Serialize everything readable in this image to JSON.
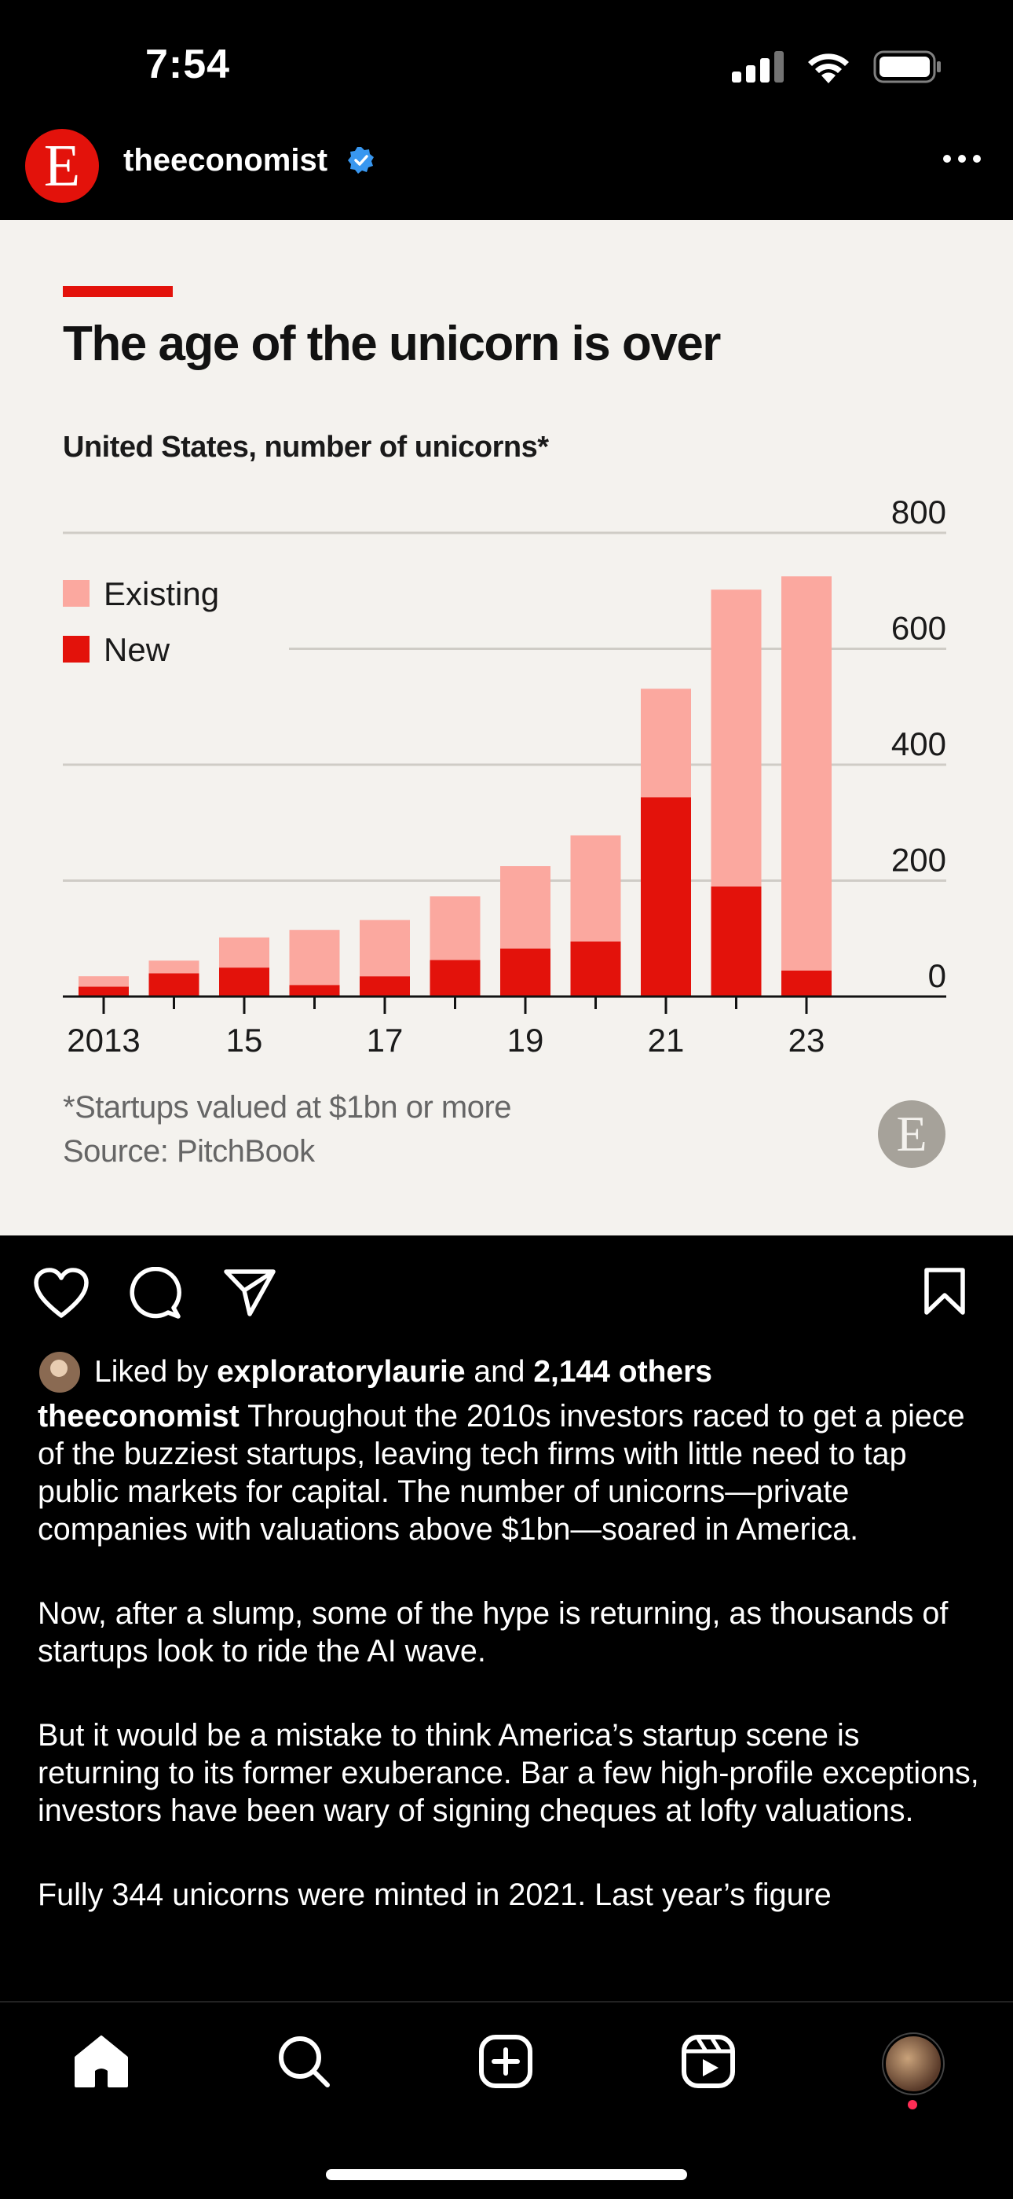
{
  "status_bar": {
    "time": "7:54"
  },
  "post": {
    "username": "theeconomist",
    "avatar_letter": "E",
    "brand_color": "#e3120b"
  },
  "chart_data": {
    "type": "bar",
    "stacked": true,
    "title": "The age of the unicorn is over",
    "subtitle": "United States, number of unicorns*",
    "categories": [
      "2013",
      "2014",
      "2015",
      "2016",
      "2017",
      "2018",
      "2019",
      "2020",
      "2021",
      "2022",
      "2023"
    ],
    "x_tick_labels": [
      "2013",
      "15",
      "17",
      "19",
      "21",
      "23"
    ],
    "series": [
      {
        "name": "New",
        "color": "#e3120b",
        "values": [
          17,
          40,
          50,
          20,
          35,
          63,
          83,
          95,
          344,
          190,
          45
        ]
      },
      {
        "name": "Existing",
        "color": "#fba89f",
        "values": [
          18,
          22,
          52,
          95,
          97,
          110,
          142,
          183,
          187,
          512,
          680
        ]
      }
    ],
    "y_ticks": [
      "800",
      "600",
      "400",
      "200",
      "0"
    ],
    "ylim": [
      0,
      800
    ],
    "y_axis_side": "right",
    "legend_position": "top-left",
    "footnote": "*Startups valued at $1bn or more",
    "source": "Source: PitchBook"
  },
  "likes": {
    "prefix": "Liked by",
    "user": "exploratorylaurie",
    "joiner": "and",
    "others": "2,144 others"
  },
  "caption": {
    "author": "theeconomist",
    "p1": "Throughout the 2010s investors raced to get a piece of the buzziest startups, leaving tech firms with little need to tap public markets for capital. The number of unicorns—private companies with valuations above $1bn—soared in America.",
    "p2": "Now, after a slump, some of the hype is returning, as thousands of startups look to ride the AI wave.",
    "p3": "But it would be a mistake to think America’s startup scene is returning to its former exuberance. Bar a few high-profile exceptions, investors have been wary of signing cheques at lofty valuations.",
    "p4": "Fully 344 unicorns were minted in 2021. Last year’s figure"
  }
}
